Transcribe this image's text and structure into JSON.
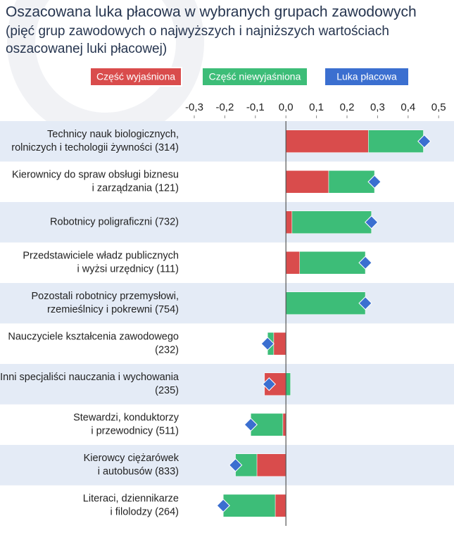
{
  "chart_data": {
    "type": "bar",
    "title": "Oszacowana luka płacowa w wybranych grupach zawodowych",
    "subtitle": [
      "(pięć grup zawodowych o najwyższych i najniższych wartościach",
      "oszacowanej luki płacowej)"
    ],
    "categories": [
      [
        "Technicy nauk biologicznych,",
        "rolniczych i techologii żywności (314)"
      ],
      [
        "Kierownicy do spraw obsługi biznesu",
        "i zarządzania (121)"
      ],
      [
        "Robotnicy poligraficzni (732)"
      ],
      [
        "Przedstawiciele władz publicznych",
        "i wyżsi urzędnicy (111)"
      ],
      [
        "Pozostali robotnicy przemysłowi,",
        "rzemieślnicy i pokrewni (754)"
      ],
      [
        "Nauczyciele kształcenia zawodowego",
        "(232)"
      ],
      [
        "Inni specjaliści nauczania i wychowania",
        "(235)"
      ],
      [
        "Stewardzi, konduktorzy",
        "i przewodnicy (511)"
      ],
      [
        "Kierowcy ciężarówek",
        "i autobusów (833)"
      ],
      [
        "Literaci, dziennikarze",
        "i filolodzy (264)"
      ]
    ],
    "series": [
      {
        "name": "Część wyjaśniona",
        "color": "#d94c4c",
        "values": [
          0.27,
          0.14,
          0.02,
          0.045,
          0,
          -0.04,
          -0.07,
          -0.01,
          -0.095,
          -0.035
        ]
      },
      {
        "name": "Część niewyjaśniona",
        "color": "#3dbd78",
        "values": [
          0.18,
          0.15,
          0.26,
          0.215,
          0.26,
          -0.02,
          0.015,
          -0.105,
          -0.07,
          -0.17
        ]
      },
      {
        "name": "Luka płacowa",
        "color": "#3b6fd0",
        "marker": "diamond",
        "values": [
          0.453,
          0.29,
          0.28,
          0.26,
          0.26,
          -0.06,
          -0.055,
          -0.115,
          -0.165,
          -0.205
        ]
      }
    ],
    "xlim": [
      -0.32,
      0.52
    ],
    "xticks": [
      {
        "value": -0.3,
        "label": "-0,3"
      },
      {
        "value": -0.2,
        "label": "-0,2"
      },
      {
        "value": -0.1,
        "label": "-0,1"
      },
      {
        "value": 0,
        "label": "0,0"
      },
      {
        "value": 0.1,
        "label": "0,1"
      },
      {
        "value": 0.2,
        "label": "0,2"
      },
      {
        "value": 0.3,
        "label": "0,3"
      },
      {
        "value": 0.4,
        "label": "0,4"
      },
      {
        "value": 0.5,
        "label": "0,5"
      }
    ],
    "band_color": "#e4ebf6"
  }
}
